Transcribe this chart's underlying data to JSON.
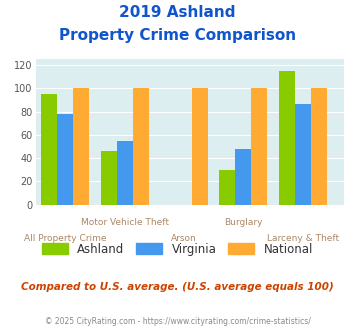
{
  "title_line1": "2019 Ashland",
  "title_line2": "Property Crime Comparison",
  "categories": [
    "All Property Crime",
    "Motor Vehicle Theft",
    "Arson",
    "Burglary",
    "Larceny & Theft"
  ],
  "top_labels": [
    "",
    "Motor Vehicle Theft",
    "",
    "Burglary",
    ""
  ],
  "bottom_labels": [
    "All Property Crime",
    "",
    "Arson",
    "",
    "Larceny & Theft"
  ],
  "ashland": [
    95,
    46,
    0,
    30,
    115
  ],
  "virginia": [
    78,
    55,
    0,
    48,
    87
  ],
  "national": [
    100,
    100,
    100,
    100,
    100
  ],
  "ashland_color": "#88cc00",
  "virginia_color": "#4499ee",
  "national_color": "#ffaa33",
  "ylim": [
    0,
    125
  ],
  "yticks": [
    0,
    20,
    40,
    60,
    80,
    100,
    120
  ],
  "bg_color": "#ddeef0",
  "title_color": "#1155cc",
  "xlabel_color": "#aa8866",
  "footer_note": "Compared to U.S. average. (U.S. average equals 100)",
  "footer_copy": "© 2025 CityRating.com - https://www.cityrating.com/crime-statistics/",
  "legend_labels": [
    "Ashland",
    "Virginia",
    "National"
  ],
  "bar_width": 0.27
}
